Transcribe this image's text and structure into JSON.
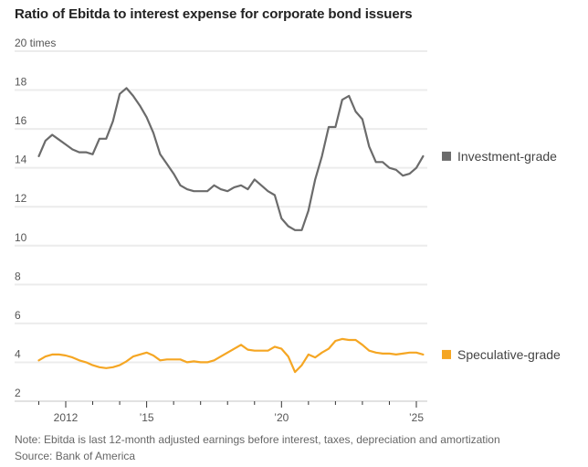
{
  "title": "Ratio of Ebitda to interest expense for corporate bond issuers",
  "note": "Note: Ebitda is last 12-month adjusted earnings before interest, taxes, depreciation and amortization",
  "source": "Source: Bank of America",
  "chart_data": {
    "type": "line",
    "title": "Ratio of Ebitda to interest expense for corporate bond issuers",
    "xlabel": "",
    "ylabel": "times",
    "ylim": [
      2,
      20
    ],
    "yticks": [
      2,
      4,
      6,
      8,
      10,
      12,
      14,
      16,
      18,
      20
    ],
    "ytick_labels": [
      "2",
      "4",
      "6",
      "8",
      "10",
      "12",
      "14",
      "16",
      "18",
      "20 times"
    ],
    "xlim": [
      2010.5,
      2025.4
    ],
    "xticks_major": [
      {
        "value": 2012,
        "label": "2012"
      },
      {
        "value": 2015,
        "label": "’15"
      },
      {
        "value": 2020,
        "label": "’20"
      },
      {
        "value": 2025,
        "label": "’25"
      }
    ],
    "xticks_minor": [
      2011,
      2013,
      2014,
      2016,
      2017,
      2018,
      2019,
      2021,
      2022,
      2023,
      2024
    ],
    "grid": true,
    "legend_placement": "right, at line ends",
    "series": [
      {
        "name": "Investment-grade",
        "color": "#6b6b6b",
        "x": [
          2011.0,
          2011.25,
          2011.5,
          2011.75,
          2012.0,
          2012.25,
          2012.5,
          2012.75,
          2013.0,
          2013.25,
          2013.5,
          2013.75,
          2014.0,
          2014.25,
          2014.5,
          2014.75,
          2015.0,
          2015.25,
          2015.5,
          2015.75,
          2016.0,
          2016.25,
          2016.5,
          2016.75,
          2017.0,
          2017.25,
          2017.5,
          2017.75,
          2018.0,
          2018.25,
          2018.5,
          2018.75,
          2019.0,
          2019.25,
          2019.5,
          2019.75,
          2020.0,
          2020.25,
          2020.5,
          2020.75,
          2021.0,
          2021.25,
          2021.5,
          2021.75,
          2022.0,
          2022.25,
          2022.5,
          2022.75,
          2023.0,
          2023.25,
          2023.5,
          2023.75,
          2024.0,
          2024.25,
          2024.5,
          2024.75,
          2025.0,
          2025.25
        ],
        "values": [
          14.6,
          15.4,
          15.7,
          15.45,
          15.2,
          14.95,
          14.8,
          14.8,
          14.7,
          15.5,
          15.5,
          16.4,
          17.8,
          18.1,
          17.7,
          17.2,
          16.6,
          15.8,
          14.7,
          14.2,
          13.7,
          13.1,
          12.9,
          12.8,
          12.8,
          12.8,
          13.1,
          12.9,
          12.8,
          13.0,
          13.1,
          12.9,
          13.4,
          13.1,
          12.8,
          12.6,
          11.4,
          11.0,
          10.8,
          10.8,
          11.8,
          13.4,
          14.6,
          16.1,
          16.1,
          17.5,
          17.7,
          16.9,
          16.5,
          15.1,
          14.3,
          14.3,
          14.0,
          13.9,
          13.6,
          13.7,
          14.0,
          14.6
        ]
      },
      {
        "name": "Speculative-grade",
        "color": "#f5a623",
        "x": [
          2011.0,
          2011.25,
          2011.5,
          2011.75,
          2012.0,
          2012.25,
          2012.5,
          2012.75,
          2013.0,
          2013.25,
          2013.5,
          2013.75,
          2014.0,
          2014.25,
          2014.5,
          2014.75,
          2015.0,
          2015.25,
          2015.5,
          2015.75,
          2016.0,
          2016.25,
          2016.5,
          2016.75,
          2017.0,
          2017.25,
          2017.5,
          2017.75,
          2018.0,
          2018.25,
          2018.5,
          2018.75,
          2019.0,
          2019.25,
          2019.5,
          2019.75,
          2020.0,
          2020.25,
          2020.5,
          2020.75,
          2021.0,
          2021.25,
          2021.5,
          2021.75,
          2022.0,
          2022.25,
          2022.5,
          2022.75,
          2023.0,
          2023.25,
          2023.5,
          2023.75,
          2024.0,
          2024.25,
          2024.5,
          2024.75,
          2025.0,
          2025.25
        ],
        "values": [
          4.1,
          4.3,
          4.4,
          4.4,
          4.35,
          4.25,
          4.1,
          4.0,
          3.85,
          3.75,
          3.7,
          3.75,
          3.85,
          4.05,
          4.3,
          4.4,
          4.5,
          4.35,
          4.1,
          4.15,
          4.15,
          4.15,
          4.0,
          4.05,
          4.0,
          4.0,
          4.1,
          4.3,
          4.5,
          4.7,
          4.9,
          4.65,
          4.6,
          4.6,
          4.6,
          4.8,
          4.7,
          4.3,
          3.5,
          3.85,
          4.4,
          4.25,
          4.5,
          4.7,
          5.1,
          5.2,
          5.15,
          5.15,
          4.9,
          4.6,
          4.5,
          4.45,
          4.45,
          4.4,
          4.45,
          4.5,
          4.5,
          4.4
        ]
      }
    ]
  }
}
